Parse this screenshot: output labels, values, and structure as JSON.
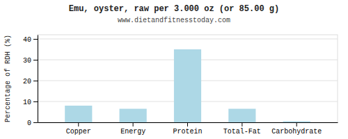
{
  "chart_data": {
    "type": "bar",
    "title": "Emu, oyster, raw per 3.000 oz (or 85.00 g)",
    "subtitle": "www.dietandfitnesstoday.com",
    "categories": [
      "Copper",
      "Energy",
      "Protein",
      "Total-Fat",
      "Carbohydrate"
    ],
    "values": [
      8.0,
      6.5,
      35.0,
      6.5,
      0.5
    ],
    "color": "#add8e6",
    "ylabel": "Percentage of RDH (%)",
    "ylim": [
      0,
      42
    ],
    "yticks": [
      0,
      10,
      20,
      30,
      40
    ],
    "grid": true
  }
}
